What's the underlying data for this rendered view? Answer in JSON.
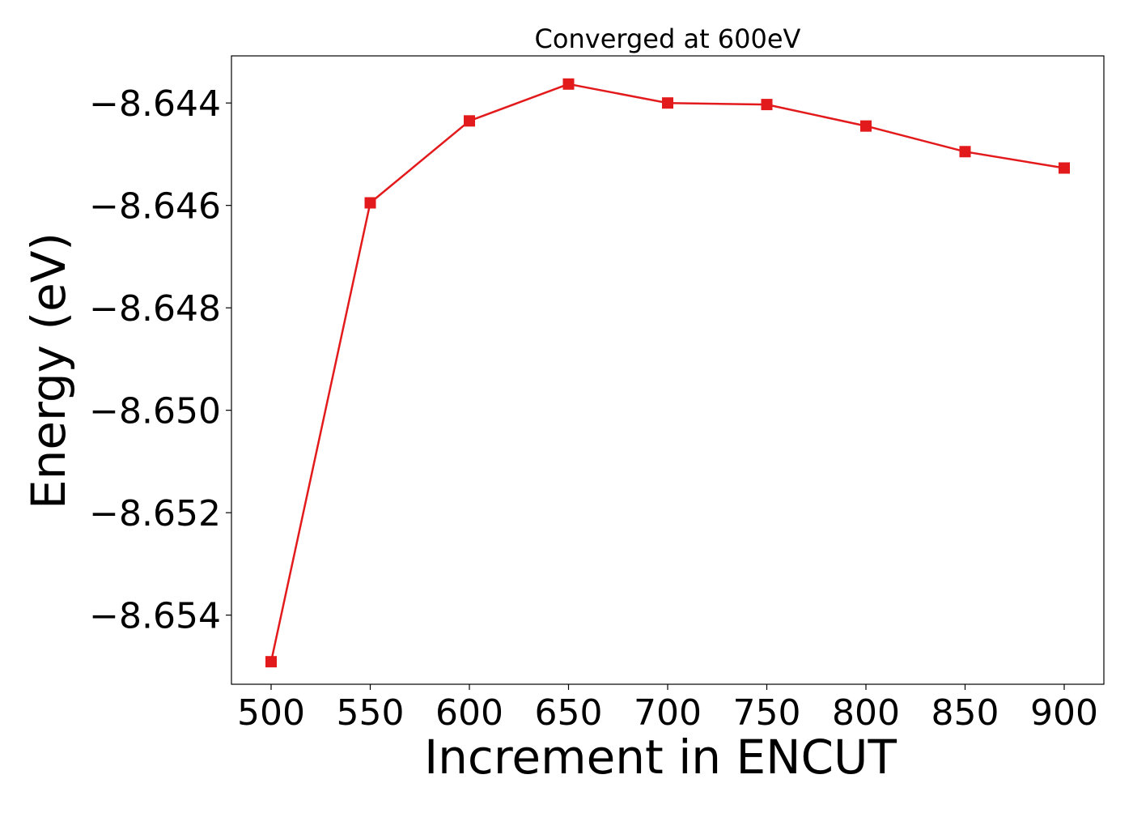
{
  "chart_data": {
    "type": "line",
    "title": "Converged at 600eV",
    "xlabel": "Increment in ENCUT",
    "ylabel": "Energy (eV)",
    "x": [
      500,
      550,
      600,
      650,
      700,
      750,
      800,
      850,
      900
    ],
    "series": [
      {
        "values": [
          -8.65491,
          -8.64595,
          -8.64435,
          -8.64363,
          -8.644,
          -8.64403,
          -8.64445,
          -8.64495,
          -8.64527
        ],
        "color": "#e31a1c",
        "marker": "square"
      }
    ],
    "xlim": [
      480,
      920
    ],
    "ylim": [
      -8.65535,
      -8.64308
    ],
    "xticks": [
      500,
      550,
      600,
      650,
      700,
      750,
      800,
      850,
      900
    ],
    "yticks": [
      -8.644,
      -8.646,
      -8.648,
      -8.65,
      -8.652,
      -8.654
    ],
    "grid": false,
    "legend": "none"
  }
}
